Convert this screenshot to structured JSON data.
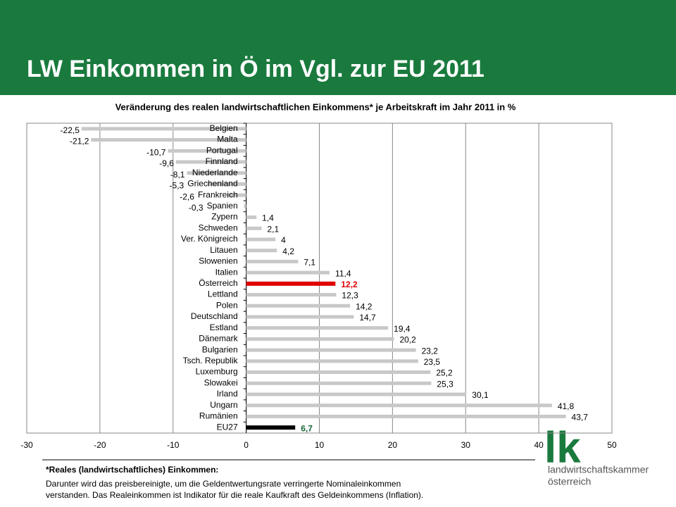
{
  "slide_title": "LW Einkommen in Ö im Vgl. zur EU 2011",
  "chart_data": {
    "type": "hbar",
    "title": "Veränderung des realen landwirtschaftlichen Einkommens* je Arbeitskraft im Jahr 2011 in %",
    "categories": [
      "Belgien",
      "Malta",
      "Portugal",
      "Finnland",
      "Niederlande",
      "Griechenland",
      "Frankreich",
      "Spanien",
      "Zypern",
      "Schweden",
      "Ver. Königreich",
      "Litauen",
      "Slowenien",
      "Italien",
      "Österreich",
      "Lettland",
      "Polen",
      "Deutschland",
      "Estland",
      "Dänemark",
      "Bulgarien",
      "Tsch. Republik",
      "Luxemburg",
      "Slowakei",
      "Irland",
      "Ungarn",
      "Rumänien",
      "EU27"
    ],
    "values": [
      -22.5,
      -21.2,
      -10.7,
      -9.6,
      -8.1,
      -5.3,
      -2.6,
      -0.3,
      1.4,
      2.1,
      4,
      4.2,
      7.1,
      11.4,
      12.2,
      12.3,
      14.2,
      14.7,
      19.4,
      20.2,
      23.2,
      23.5,
      25.2,
      25.3,
      30.1,
      41.8,
      43.7,
      6.7
    ],
    "value_labels": [
      "-22,5",
      "-21,2",
      "-10,7",
      "-9,6",
      "-8,1",
      "-5,3",
      "-2,6",
      "-0,3",
      "1,4",
      "2,1",
      "4",
      "4,2",
      "7,1",
      "11,4",
      "12,2",
      "12,3",
      "14,2",
      "14,7",
      "19,4",
      "20,2",
      "23,2",
      "23,5",
      "25,2",
      "25,3",
      "30,1",
      "41,8",
      "43,7",
      "6,7"
    ],
    "colors": [
      "#c8c8c8",
      "#c8c8c8",
      "#c8c8c8",
      "#c8c8c8",
      "#c8c8c8",
      "#c8c8c8",
      "#c8c8c8",
      "#c8c8c8",
      "#c8c8c8",
      "#c8c8c8",
      "#c8c8c8",
      "#c8c8c8",
      "#c8c8c8",
      "#c8c8c8",
      "#e00000",
      "#c8c8c8",
      "#c8c8c8",
      "#c8c8c8",
      "#c8c8c8",
      "#c8c8c8",
      "#c8c8c8",
      "#c8c8c8",
      "#c8c8c8",
      "#c8c8c8",
      "#c8c8c8",
      "#c8c8c8",
      "#c8c8c8",
      "#000000"
    ],
    "label_colors": [
      "#000000",
      "#000000",
      "#000000",
      "#000000",
      "#000000",
      "#000000",
      "#000000",
      "#000000",
      "#000000",
      "#000000",
      "#000000",
      "#000000",
      "#000000",
      "#000000",
      "#e00000",
      "#000000",
      "#000000",
      "#000000",
      "#000000",
      "#000000",
      "#000000",
      "#000000",
      "#000000",
      "#000000",
      "#000000",
      "#000000",
      "#000000",
      "#1a6b3a"
    ],
    "xlim": [
      -30,
      50
    ],
    "xticks": [
      -30,
      -20,
      -10,
      0,
      10,
      20,
      30,
      40,
      50
    ],
    "grid": true
  },
  "footnote": {
    "heading": "*Reales (landwirtschaftliches) Einkommen:",
    "lines": [
      "Darunter wird das preisbereinigte, um die Geldentwertungsrate verringerte Nominaleinkommen",
      "verstanden. Das Realeinkommen ist Indikator für die reale Kaufkraft des Geldeinkommens (Inflation)."
    ]
  },
  "logo": {
    "mark": "lk",
    "lines": [
      "landwirtschaftskammer",
      "österreich"
    ]
  }
}
